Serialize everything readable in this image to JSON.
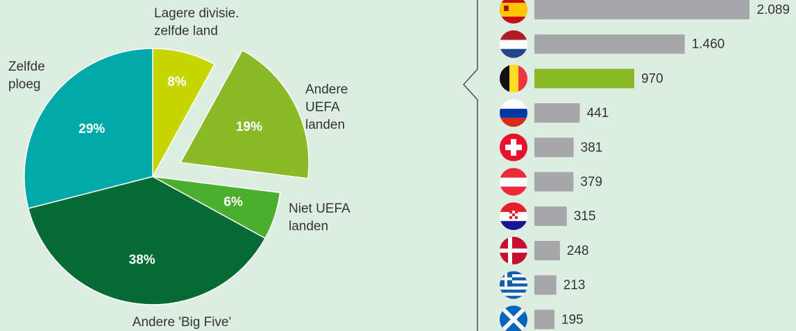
{
  "chart_data": [
    {
      "type": "pie",
      "categories": [
        "Lagere divisie. zelfde land",
        "Andere UEFA landen",
        "Niet UEFA landen",
        "Andere 'Big Five'",
        "Zelfde ploeg"
      ],
      "values": [
        8,
        19,
        6,
        38,
        29
      ],
      "value_labels": [
        "8%",
        "19%",
        "6%",
        "38%",
        "29%"
      ],
      "colors": [
        "#c5d600",
        "#8aba28",
        "#4aae2e",
        "#066a35",
        "#00a8a8"
      ],
      "exploded": [
        false,
        true,
        false,
        false,
        false
      ]
    },
    {
      "type": "bar",
      "orientation": "horizontal",
      "values": [
        2089,
        1460,
        970,
        441,
        381,
        379,
        315,
        248,
        213,
        195
      ],
      "value_labels": [
        "2.089",
        "1.460",
        "970",
        "441",
        "381",
        "379",
        "315",
        "248",
        "213",
        "195"
      ],
      "colors": [
        "#a7a7a9",
        "#a7a7a9",
        "#8aba28",
        "#a7a7a9",
        "#a7a7a9",
        "#a7a7a9",
        "#a7a7a9",
        "#a7a7a9",
        "#a7a7a9",
        "#a7a7a9"
      ]
    }
  ]
}
